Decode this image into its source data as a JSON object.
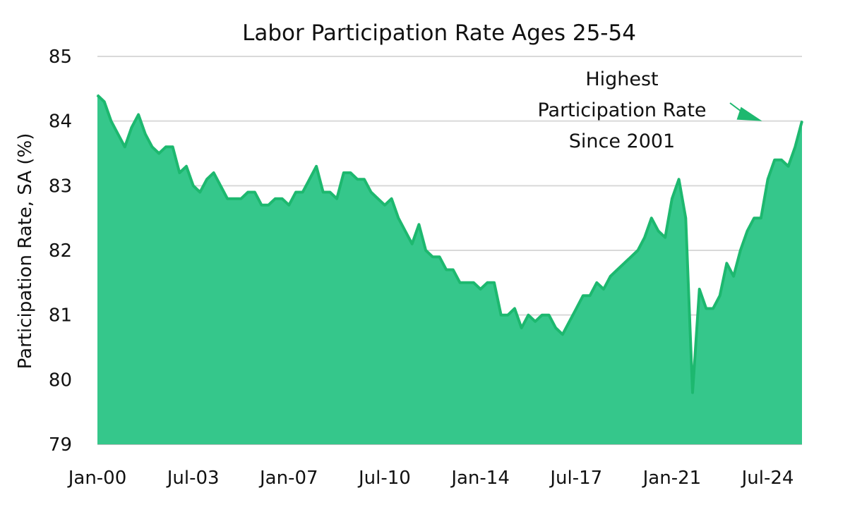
{
  "chart_data": {
    "type": "area",
    "title": "Labor Participation Rate Ages 25-54",
    "ylabel": "Participation Rate, SA (%)",
    "xlabel": "",
    "ylim": [
      79,
      85
    ],
    "yticks": [
      "79",
      "80",
      "81",
      "82",
      "83",
      "84",
      "85"
    ],
    "xticks": [
      "Jan-00",
      "Jul-03",
      "Jan-07",
      "Jul-10",
      "Jan-14",
      "Jul-17",
      "Jan-21",
      "Jul-24"
    ],
    "grid": true,
    "legend": "none",
    "colors": {
      "fill": "#35c78b",
      "line": "#1db86f",
      "grid": "#d9d9d9",
      "axis": "#bfbfbf"
    },
    "annotation": {
      "lines": [
        "Highest",
        "Participation Rate",
        "Since 2001"
      ],
      "points_to": {
        "x": "Jul-24",
        "y": 84.0
      }
    },
    "series": [
      {
        "points": [
          [
            "Jan-00",
            84.4
          ],
          [
            "Apr-00",
            84.3
          ],
          [
            "Jul-00",
            84.0
          ],
          [
            "Oct-00",
            83.8
          ],
          [
            "Jan-01",
            83.6
          ],
          [
            "Apr-01",
            83.9
          ],
          [
            "Jul-01",
            84.1
          ],
          [
            "Oct-01",
            83.8
          ],
          [
            "Jan-02",
            83.6
          ],
          [
            "Apr-02",
            83.5
          ],
          [
            "Jul-02",
            83.6
          ],
          [
            "Oct-02",
            83.6
          ],
          [
            "Jan-03",
            83.2
          ],
          [
            "Apr-03",
            83.3
          ],
          [
            "Jul-03",
            83.0
          ],
          [
            "Oct-03",
            82.9
          ],
          [
            "Jan-04",
            83.1
          ],
          [
            "Apr-04",
            83.2
          ],
          [
            "Jul-04",
            83.0
          ],
          [
            "Oct-04",
            82.8
          ],
          [
            "Jan-05",
            82.8
          ],
          [
            "Apr-05",
            82.8
          ],
          [
            "Jul-05",
            82.9
          ],
          [
            "Oct-05",
            82.9
          ],
          [
            "Jan-06",
            82.7
          ],
          [
            "Apr-06",
            82.7
          ],
          [
            "Jul-06",
            82.8
          ],
          [
            "Oct-06",
            82.8
          ],
          [
            "Jan-07",
            82.7
          ],
          [
            "Apr-07",
            82.9
          ],
          [
            "Jul-07",
            82.9
          ],
          [
            "Oct-07",
            83.1
          ],
          [
            "Jan-08",
            83.3
          ],
          [
            "Apr-08",
            82.9
          ],
          [
            "Jul-08",
            82.9
          ],
          [
            "Oct-08",
            82.8
          ],
          [
            "Jan-09",
            83.2
          ],
          [
            "Apr-09",
            83.2
          ],
          [
            "Jul-09",
            83.1
          ],
          [
            "Oct-09",
            83.1
          ],
          [
            "Jan-10",
            82.9
          ],
          [
            "Apr-10",
            82.8
          ],
          [
            "Jul-10",
            82.7
          ],
          [
            "Oct-10",
            82.8
          ],
          [
            "Jan-11",
            82.5
          ],
          [
            "Apr-11",
            82.3
          ],
          [
            "Jul-11",
            82.1
          ],
          [
            "Oct-11",
            82.4
          ],
          [
            "Jan-12",
            82.0
          ],
          [
            "Apr-12",
            81.9
          ],
          [
            "Jul-12",
            81.9
          ],
          [
            "Oct-12",
            81.7
          ],
          [
            "Jan-13",
            81.7
          ],
          [
            "Apr-13",
            81.5
          ],
          [
            "Jul-13",
            81.5
          ],
          [
            "Oct-13",
            81.5
          ],
          [
            "Jan-14",
            81.4
          ],
          [
            "Apr-14",
            81.5
          ],
          [
            "Jul-14",
            81.5
          ],
          [
            "Oct-14",
            81.0
          ],
          [
            "Jan-15",
            81.0
          ],
          [
            "Apr-15",
            81.1
          ],
          [
            "Jul-15",
            80.8
          ],
          [
            "Oct-15",
            81.0
          ],
          [
            "Jan-16",
            80.9
          ],
          [
            "Apr-16",
            81.0
          ],
          [
            "Jul-16",
            81.0
          ],
          [
            "Oct-16",
            80.8
          ],
          [
            "Jan-17",
            80.7
          ],
          [
            "Apr-17",
            80.9
          ],
          [
            "Jul-17",
            81.1
          ],
          [
            "Oct-17",
            81.3
          ],
          [
            "Jan-18",
            81.3
          ],
          [
            "Apr-18",
            81.5
          ],
          [
            "Jul-18",
            81.4
          ],
          [
            "Oct-18",
            81.6
          ],
          [
            "Jan-19",
            81.7
          ],
          [
            "Apr-19",
            81.8
          ],
          [
            "Jul-19",
            81.9
          ],
          [
            "Oct-19",
            82.0
          ],
          [
            "Jan-20",
            82.2
          ],
          [
            "Apr-20",
            82.5
          ],
          [
            "Jul-20",
            82.3
          ],
          [
            "Oct-20",
            82.2
          ],
          [
            "Jan-21",
            82.8
          ],
          [
            "Apr-21",
            83.1
          ],
          [
            "Jul-21",
            82.5
          ],
          [
            "Oct-21",
            79.8
          ],
          [
            "Jan-22",
            81.4
          ],
          [
            "Apr-22",
            81.1
          ],
          [
            "Jul-22",
            81.1
          ],
          [
            "Oct-22",
            81.3
          ],
          [
            "Jan-23",
            81.8
          ],
          [
            "Apr-23",
            81.6
          ],
          [
            "Jul-23",
            82.0
          ],
          [
            "Oct-23",
            82.3
          ],
          [
            "Jan-24",
            82.5
          ],
          [
            "Apr-24",
            82.5
          ],
          [
            "Jul-24",
            83.1
          ],
          [
            "Oct-24",
            83.4
          ],
          [
            "Jan-25",
            83.4
          ],
          [
            "Apr-25",
            83.3
          ],
          [
            "Jul-25",
            83.6
          ],
          [
            "Oct-25",
            84.0
          ]
        ]
      }
    ]
  }
}
